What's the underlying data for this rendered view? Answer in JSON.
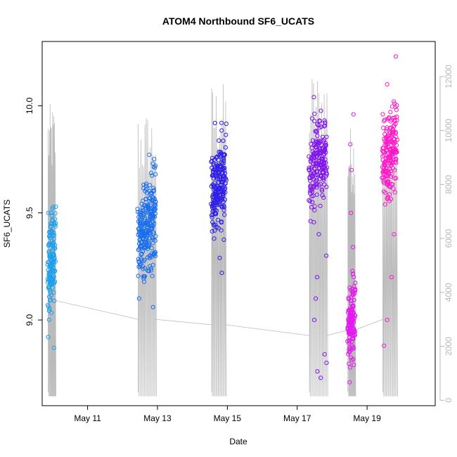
{
  "chart_data": {
    "type": "scatter",
    "title": "ATOM4 Northbound SF6_UCATS",
    "xlabel": "Date",
    "ylabel": "SF6_UCATS",
    "x_ticks": [
      "May 11",
      "May 13",
      "May 15",
      "May 17",
      "May 19"
    ],
    "x_tick_days": [
      11,
      13,
      15,
      17,
      19
    ],
    "xlim_days": [
      9.7,
      20.95
    ],
    "ylim": [
      8.6,
      10.3
    ],
    "y_ticks": [
      9.0,
      9.5,
      10.0
    ],
    "y_tick_labels": [
      "9.0",
      "9.5",
      "10.0"
    ],
    "right_axis": {
      "label": "",
      "lim": [
        -200,
        13300
      ],
      "ticks": [
        0,
        2000,
        4000,
        6000,
        8000,
        10000,
        12000
      ],
      "tick_labels": [
        "0",
        "2000",
        "4000",
        "6000",
        "8000",
        "10000",
        "12000"
      ],
      "color": "#b8b8b8"
    },
    "altitude_line_color": "#bbbbbb",
    "flights": [
      {
        "day_start": 9.87,
        "day_end": 10.07,
        "center": 9.28,
        "spread": 0.1,
        "n": 140,
        "color": "#1aa0ee",
        "outliers": [
          8.87,
          8.92,
          9.52,
          9.5
        ]
      },
      {
        "day_start": 12.45,
        "day_end": 12.95,
        "center": 9.43,
        "spread": 0.1,
        "n": 260,
        "color": "#1a6fee",
        "outliers": [
          9.06,
          9.1,
          9.73,
          9.72
        ]
      },
      {
        "day_start": 14.55,
        "day_end": 14.95,
        "center": 9.62,
        "spread": 0.1,
        "n": 230,
        "color": "#2e1fe8",
        "outliers": [
          9.22,
          9.29,
          9.92
        ]
      },
      {
        "day_start": 17.35,
        "day_end": 17.85,
        "center": 9.72,
        "spread": 0.1,
        "n": 190,
        "color": "#7f12ee",
        "outliers": [
          8.73,
          8.76,
          8.8,
          8.84,
          9.0,
          9.1,
          9.2,
          9.3,
          9.4,
          10.04
        ]
      },
      {
        "day_start": 18.45,
        "day_end": 18.65,
        "center": 9.0,
        "spread": 0.09,
        "n": 140,
        "color": "#e21aee",
        "outliers": [
          9.82,
          9.96,
          9.7,
          9.5,
          9.34
        ]
      },
      {
        "day_start": 19.45,
        "day_end": 19.85,
        "center": 9.78,
        "spread": 0.1,
        "n": 200,
        "color": "#ff17c8",
        "outliers": [
          8.88,
          9.0,
          9.2,
          9.4,
          9.6,
          10.1,
          10.23
        ]
      }
    ]
  }
}
